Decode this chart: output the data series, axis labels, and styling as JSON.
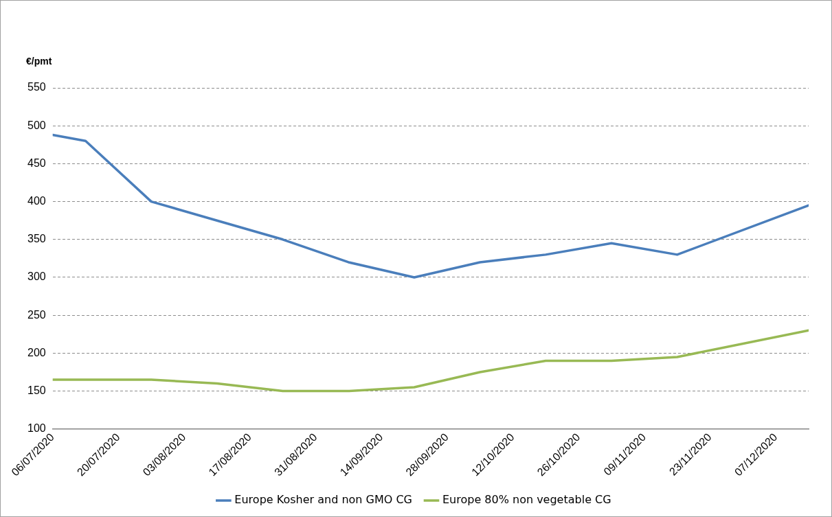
{
  "chart_data": {
    "type": "line",
    "ylabel": "€/pmt",
    "x": [
      "2020-07-06",
      "2020-07-13",
      "2020-07-27",
      "2020-08-10",
      "2020-08-24",
      "2020-09-07",
      "2020-09-21",
      "2020-10-05",
      "2020-10-19",
      "2020-11-02",
      "2020-11-16",
      "2020-12-14"
    ],
    "series": [
      {
        "name": "Europe Kosher and non GMO CG",
        "color": "#4a7ebb",
        "values": [
          488,
          480,
          400,
          375,
          350,
          320,
          300,
          320,
          330,
          345,
          330,
          395
        ]
      },
      {
        "name": "Europe 80% non vegetable CG",
        "color": "#98b954",
        "values": [
          165,
          165,
          165,
          160,
          150,
          150,
          155,
          175,
          190,
          190,
          195,
          230
        ]
      }
    ],
    "xlim": [
      "2020-07-06",
      "2020-12-14"
    ],
    "xticks": [
      {
        "value": "2020-07-06",
        "label": "06/07/2020"
      },
      {
        "value": "2020-07-20",
        "label": "20/07/2020"
      },
      {
        "value": "2020-08-03",
        "label": "03/08/2020"
      },
      {
        "value": "2020-08-17",
        "label": "17/08/2020"
      },
      {
        "value": "2020-08-31",
        "label": "31/08/2020"
      },
      {
        "value": "2020-09-14",
        "label": "14/09/2020"
      },
      {
        "value": "2020-09-28",
        "label": "28/09/2020"
      },
      {
        "value": "2020-10-12",
        "label": "12/10/2020"
      },
      {
        "value": "2020-10-26",
        "label": "26/10/2020"
      },
      {
        "value": "2020-11-09",
        "label": "09/11/2020"
      },
      {
        "value": "2020-11-23",
        "label": "23/11/2020"
      },
      {
        "value": "2020-12-07",
        "label": "07/12/2020"
      }
    ],
    "ylim": [
      100,
      550
    ],
    "yticks": [
      100,
      150,
      200,
      250,
      300,
      350,
      400,
      450,
      500,
      550
    ],
    "grid": "y",
    "legend": "bottom",
    "marker": "none",
    "line_style": "solid"
  }
}
